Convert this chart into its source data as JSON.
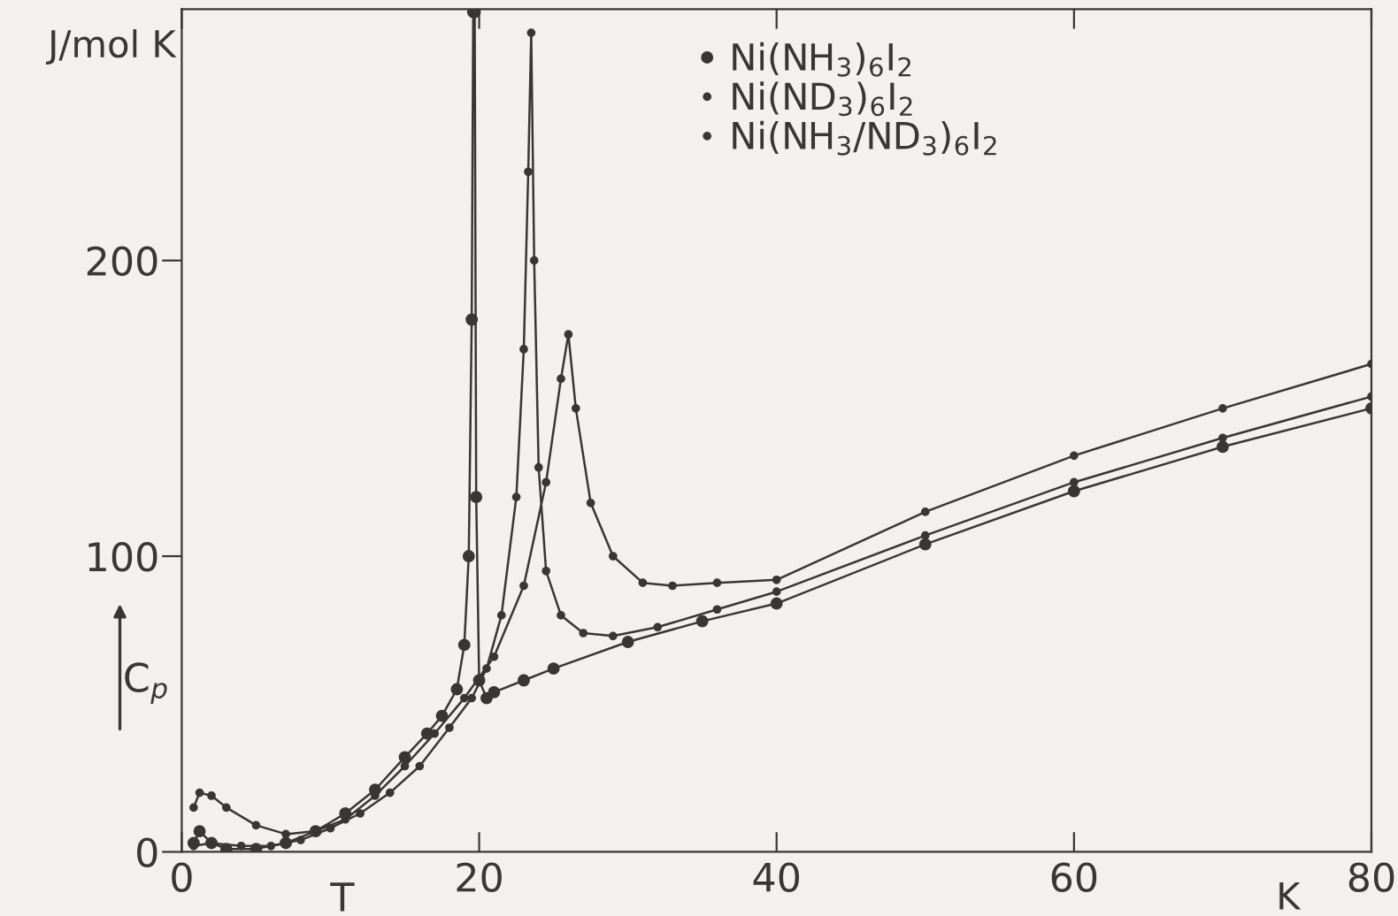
{
  "chart_data": {
    "type": "line",
    "xlabel": "T",
    "ylabel": "C$_{p}$",
    "annotations": [
      "J/mol K",
      "K"
    ],
    "xlim": [
      0,
      80
    ],
    "xticks": [
      0,
      20,
      40,
      60,
      80
    ],
    "ylim": [
      0,
      285
    ],
    "yticks": [
      0,
      100,
      200
    ],
    "grid": false,
    "legend": "top",
    "marker": "circle",
    "line_style": "solid",
    "series": [
      {
        "name": "Ni(NH$_{3}$)$_{6}$I$_{2}$",
        "color": "#3a3633",
        "x": [
          0.8,
          1.2,
          2,
          3,
          5,
          7,
          9,
          11,
          13,
          15,
          16.5,
          17.5,
          18.5,
          19,
          19.3,
          19.5,
          19.6,
          19.7,
          19.8,
          20,
          20.5,
          21,
          23,
          25,
          30,
          35,
          40,
          50,
          60,
          70,
          80
        ],
        "values": [
          3,
          7,
          3,
          1,
          1,
          3,
          7,
          13,
          21,
          32,
          40,
          46,
          55,
          70,
          100,
          180,
          284,
          284,
          120,
          58,
          52,
          54,
          58,
          62,
          71,
          78,
          84,
          104,
          122,
          137,
          150
        ]
      },
      {
        "name": "Ni(ND$_{3}$)$_{6}$I$_{2}$",
        "color": "#3a3633",
        "x": [
          0.8,
          1.2,
          2,
          3,
          5,
          7,
          9,
          11,
          13,
          15,
          17,
          19,
          21,
          23,
          24.5,
          25.5,
          26,
          26.5,
          27.5,
          29,
          31,
          33,
          36,
          40,
          50,
          60,
          70,
          80
        ],
        "values": [
          15,
          20,
          19,
          15,
          9,
          6,
          7,
          11,
          19,
          29,
          40,
          52,
          66,
          90,
          125,
          160,
          175,
          150,
          118,
          100,
          91,
          90,
          91,
          92,
          115,
          134,
          150,
          165
        ]
      },
      {
        "name": "Ni(NH$_{3}$/ND$_{3}$)$_{6}$I$_{2}$",
        "color": "#3a3633",
        "x": [
          0.8,
          2,
          4,
          6,
          8,
          10,
          12,
          14,
          16,
          18,
          19.5,
          20.5,
          21.5,
          22.5,
          23,
          23.3,
          23.5,
          23.7,
          24,
          24.5,
          25.5,
          27,
          29,
          32,
          36,
          40,
          50,
          60,
          70,
          80
        ],
        "values": [
          2,
          3,
          2,
          2,
          4,
          8,
          13,
          20,
          29,
          42,
          52,
          62,
          80,
          120,
          170,
          230,
          277,
          200,
          130,
          95,
          80,
          74,
          73,
          76,
          82,
          88,
          107,
          125,
          140,
          154
        ]
      }
    ]
  }
}
